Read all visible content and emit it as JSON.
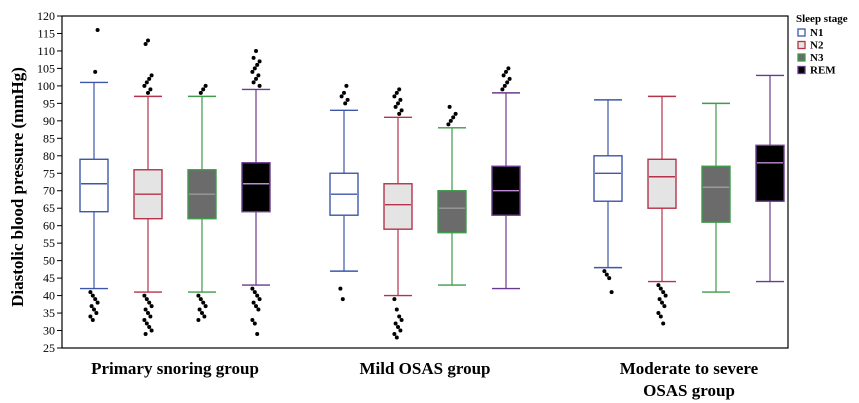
{
  "chart_data": {
    "type": "box",
    "ylabel": "Diastolic blood pressure (mmHg)",
    "ylim": [
      25,
      120
    ],
    "yticks": [
      25,
      30,
      35,
      40,
      45,
      50,
      55,
      60,
      65,
      70,
      75,
      80,
      85,
      90,
      95,
      100,
      105,
      110,
      115,
      120
    ],
    "groups": [
      {
        "label_lines": [
          "Primary snoring group"
        ]
      },
      {
        "label_lines": [
          "Mild OSAS group"
        ]
      },
      {
        "label_lines": [
          "Moderate to severe",
          "OSAS group"
        ]
      }
    ],
    "legend": {
      "title": "Sleep stage",
      "position": "top-right",
      "items": [
        {
          "label": "N1",
          "stroke": "#3d57a8",
          "fill": "#ffffff"
        },
        {
          "label": "N2",
          "stroke": "#b5334a",
          "fill": "#e4e4e4"
        },
        {
          "label": "N3",
          "stroke": "#3f9a4a",
          "fill": "#6b6b6b"
        },
        {
          "label": "REM",
          "stroke": "#6a3a8c",
          "fill": "#000000"
        }
      ]
    },
    "series": [
      {
        "name": "N1",
        "boxes": [
          {
            "group": 0,
            "whisker_low": 42,
            "q1": 64,
            "median": 72,
            "q3": 79,
            "whisker_high": 101,
            "outliers_low": [
              41,
              40,
              39,
              38,
              37,
              36,
              35,
              34,
              33
            ],
            "outliers_high": [
              104,
              116
            ]
          },
          {
            "group": 1,
            "whisker_low": 47,
            "q1": 63,
            "median": 69,
            "q3": 75,
            "whisker_high": 93,
            "outliers_low": [
              42,
              39
            ],
            "outliers_high": [
              95,
              96,
              97,
              98,
              100
            ]
          },
          {
            "group": 2,
            "whisker_low": 48,
            "q1": 67,
            "median": 75,
            "q3": 80,
            "whisker_high": 96,
            "outliers_low": [
              47,
              46,
              45,
              41
            ],
            "outliers_high": []
          }
        ]
      },
      {
        "name": "N2",
        "boxes": [
          {
            "group": 0,
            "whisker_low": 41,
            "q1": 62,
            "median": 69,
            "q3": 76,
            "whisker_high": 97,
            "outliers_low": [
              40,
              39,
              38,
              37,
              36,
              35,
              34,
              33,
              32,
              31,
              30,
              29
            ],
            "outliers_high": [
              98,
              99,
              100,
              101,
              102,
              103,
              112,
              113
            ]
          },
          {
            "group": 1,
            "whisker_low": 40,
            "q1": 59,
            "median": 66,
            "q3": 72,
            "whisker_high": 91,
            "outliers_low": [
              39,
              36,
              34,
              33,
              32,
              31,
              30,
              29,
              28
            ],
            "outliers_high": [
              92,
              93,
              94,
              95,
              96,
              97,
              98,
              99
            ]
          },
          {
            "group": 2,
            "whisker_low": 44,
            "q1": 65,
            "median": 74,
            "q3": 79,
            "whisker_high": 97,
            "outliers_low": [
              43,
              42,
              41,
              40,
              39,
              38,
              37,
              35,
              34,
              32
            ],
            "outliers_high": []
          }
        ]
      },
      {
        "name": "N3",
        "boxes": [
          {
            "group": 0,
            "whisker_low": 41,
            "q1": 62,
            "median": 69,
            "q3": 76,
            "whisker_high": 97,
            "outliers_low": [
              40,
              39,
              38,
              37,
              36,
              35,
              34,
              33
            ],
            "outliers_high": [
              98,
              99,
              100
            ]
          },
          {
            "group": 1,
            "whisker_low": 43,
            "q1": 58,
            "median": 65,
            "q3": 70,
            "whisker_high": 88,
            "outliers_low": [],
            "outliers_high": [
              89,
              90,
              91,
              92,
              94
            ]
          },
          {
            "group": 2,
            "whisker_low": 41,
            "q1": 61,
            "median": 71,
            "q3": 77,
            "whisker_high": 95,
            "outliers_low": [],
            "outliers_high": []
          }
        ]
      },
      {
        "name": "REM",
        "boxes": [
          {
            "group": 0,
            "whisker_low": 43,
            "q1": 64,
            "median": 72,
            "q3": 78,
            "whisker_high": 99,
            "outliers_low": [
              42,
              41,
              40,
              39,
              38,
              37,
              36,
              33,
              32,
              29
            ],
            "outliers_high": [
              100,
              101,
              102,
              103,
              104,
              105,
              106,
              107,
              108,
              110
            ]
          },
          {
            "group": 1,
            "whisker_low": 42,
            "q1": 63,
            "median": 70,
            "q3": 77,
            "whisker_high": 98,
            "outliers_low": [],
            "outliers_high": [
              99,
              100,
              101,
              102,
              103,
              104,
              105
            ]
          },
          {
            "group": 2,
            "whisker_low": 44,
            "q1": 67,
            "median": 78,
            "q3": 83,
            "whisker_high": 103,
            "outliers_low": [],
            "outliers_high": []
          }
        ]
      }
    ]
  }
}
